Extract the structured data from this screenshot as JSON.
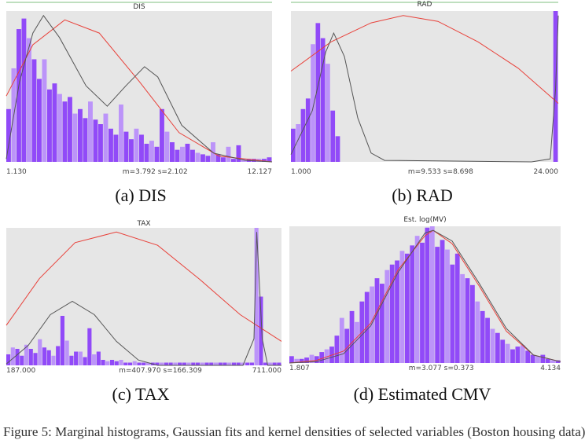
{
  "figure_caption": "Figure 5: Marginal histograms, Gaussian fits and kernel densities of selected variables (Boston housing data)",
  "colors": {
    "bar_dark": "#8a3dfa",
    "bar_light": "#b98dfb",
    "plot_bg": "#e6e6e6",
    "gaussian_fit": "#e8413a",
    "kernel_density": "#555555"
  },
  "chart_data": [
    {
      "type": "bar",
      "caption": "(a) DIS",
      "title": "DIS",
      "xlim": [
        1.13,
        12.127
      ],
      "x_min_label": "1.130",
      "x_max_label": "12.127",
      "stats_label": "m=3.792  s=2.102",
      "mean": 3.792,
      "sd": 2.102,
      "ylim": [
        0,
        1
      ],
      "values": [
        0.35,
        0.62,
        0.88,
        0.95,
        0.82,
        0.68,
        0.55,
        0.68,
        0.48,
        0.52,
        0.45,
        0.4,
        0.43,
        0.32,
        0.35,
        0.29,
        0.4,
        0.28,
        0.25,
        0.32,
        0.22,
        0.18,
        0.38,
        0.2,
        0.15,
        0.22,
        0.18,
        0.12,
        0.14,
        0.1,
        0.35,
        0.2,
        0.13,
        0.08,
        0.1,
        0.12,
        0.08,
        0.06,
        0.05,
        0.04,
        0.13,
        0.05,
        0.03,
        0.1,
        0.02,
        0.11,
        0.02,
        0.02,
        0.02,
        0.02,
        0.02,
        0.03
      ],
      "density_curve": [
        [
          0,
          0.02
        ],
        [
          0.05,
          0.55
        ],
        [
          0.1,
          0.88
        ],
        [
          0.14,
          1.0
        ],
        [
          0.2,
          0.85
        ],
        [
          0.3,
          0.52
        ],
        [
          0.38,
          0.38
        ],
        [
          0.45,
          0.52
        ],
        [
          0.52,
          0.65
        ],
        [
          0.57,
          0.58
        ],
        [
          0.66,
          0.25
        ],
        [
          0.78,
          0.06
        ],
        [
          0.9,
          0.01
        ],
        [
          1,
          0
        ]
      ],
      "gaussian_curve": [
        [
          0,
          0.45
        ],
        [
          0.1,
          0.8
        ],
        [
          0.22,
          0.97
        ],
        [
          0.35,
          0.88
        ],
        [
          0.5,
          0.55
        ],
        [
          0.65,
          0.2
        ],
        [
          0.8,
          0.04
        ],
        [
          1,
          0
        ]
      ]
    },
    {
      "type": "bar",
      "caption": "(b) RAD",
      "title": "RAD",
      "xlim": [
        1.0,
        24.0
      ],
      "x_min_label": "1.000",
      "x_max_label": "24.000",
      "stats_label": "m=9.533  s=8.698",
      "mean": 9.533,
      "sd": 8.698,
      "ylim": [
        0,
        1
      ],
      "values": [
        0.22,
        0.25,
        0.35,
        0.42,
        0.78,
        0.92,
        0.82,
        0.65,
        0.34,
        0.17,
        0,
        0,
        0,
        0,
        0,
        0,
        0,
        0,
        0,
        0,
        0,
        0,
        0,
        0,
        0,
        0,
        0,
        0,
        0,
        0,
        0,
        0,
        0,
        0,
        0,
        0,
        0,
        0,
        0,
        0,
        0,
        0,
        0,
        0,
        0,
        0,
        0,
        0,
        0,
        0,
        0,
        0,
        0,
        1.0
      ],
      "density_curve": [
        [
          0,
          0.05
        ],
        [
          0.08,
          0.35
        ],
        [
          0.13,
          0.75
        ],
        [
          0.16,
          0.88
        ],
        [
          0.2,
          0.72
        ],
        [
          0.25,
          0.3
        ],
        [
          0.3,
          0.06
        ],
        [
          0.35,
          0.01
        ],
        [
          0.9,
          0
        ],
        [
          0.97,
          0.02
        ],
        [
          0.99,
          0.5
        ],
        [
          1,
          1.0
        ]
      ],
      "gaussian_curve": [
        [
          0,
          0.62
        ],
        [
          0.15,
          0.82
        ],
        [
          0.3,
          0.95
        ],
        [
          0.42,
          1.0
        ],
        [
          0.55,
          0.96
        ],
        [
          0.7,
          0.82
        ],
        [
          0.85,
          0.64
        ],
        [
          1,
          0.4
        ]
      ]
    },
    {
      "type": "bar",
      "caption": "(c) TAX",
      "title": "TAX",
      "xlim": [
        187.0,
        711.0
      ],
      "x_min_label": "187.000",
      "x_max_label": "711.000",
      "stats_label": "m=407.970  s=166.309",
      "mean": 407.97,
      "sd": 166.309,
      "ylim": [
        0,
        1
      ],
      "values": [
        0.08,
        0.13,
        0.12,
        0.07,
        0.15,
        0.12,
        0.09,
        0.19,
        0.13,
        0.11,
        0.07,
        0.14,
        0.36,
        0.18,
        0.07,
        0.1,
        0.1,
        0.06,
        0.27,
        0.08,
        0.1,
        0.04,
        0.03,
        0.04,
        0.03,
        0.04,
        0.02,
        0.02,
        0.03,
        0.02,
        0.02,
        0.02,
        0.02,
        0.02,
        0.02,
        0.02,
        0.02,
        0.02,
        0.02,
        0.02,
        0.02,
        0.02,
        0.02,
        0.02,
        0.02,
        0.02,
        0.02,
        0.02,
        0.02,
        0.02,
        0.02,
        0.02,
        0.02,
        0.02,
        0.02,
        1.0,
        0.5,
        0.02,
        0.02,
        0.02,
        0.02
      ],
      "density_curve": [
        [
          0,
          0.01
        ],
        [
          0.08,
          0.15
        ],
        [
          0.16,
          0.38
        ],
        [
          0.24,
          0.48
        ],
        [
          0.32,
          0.38
        ],
        [
          0.4,
          0.18
        ],
        [
          0.48,
          0.04
        ],
        [
          0.55,
          0
        ],
        [
          0.86,
          0
        ],
        [
          0.9,
          0.2
        ],
        [
          0.91,
          1.0
        ],
        [
          0.93,
          0.2
        ],
        [
          0.95,
          0
        ],
        [
          1,
          0
        ]
      ],
      "gaussian_curve": [
        [
          0,
          0.3
        ],
        [
          0.12,
          0.65
        ],
        [
          0.25,
          0.92
        ],
        [
          0.4,
          1.0
        ],
        [
          0.55,
          0.9
        ],
        [
          0.7,
          0.65
        ],
        [
          0.85,
          0.38
        ],
        [
          1,
          0.18
        ]
      ]
    },
    {
      "type": "bar",
      "caption": "(d) Estimated CMV",
      "title": "Est. log(MV)",
      "xlim": [
        1.807,
        4.134
      ],
      "x_min_label": "1.807",
      "x_max_label": "4.134",
      "stats_label": "m=3.077  s=0.373",
      "mean": 3.077,
      "sd": 0.373,
      "ylim": [
        0,
        1
      ],
      "values": [
        0.05,
        0.03,
        0.03,
        0.04,
        0.06,
        0.05,
        0.08,
        0.1,
        0.12,
        0.2,
        0.33,
        0.25,
        0.38,
        0.3,
        0.45,
        0.52,
        0.56,
        0.62,
        0.58,
        0.68,
        0.72,
        0.75,
        0.82,
        0.8,
        0.86,
        0.93,
        0.88,
        0.99,
        1.0,
        0.85,
        0.9,
        0.83,
        0.72,
        0.8,
        0.65,
        0.62,
        0.57,
        0.45,
        0.38,
        0.33,
        0.25,
        0.22,
        0.17,
        0.14,
        0.1,
        0.12,
        0.13,
        0.09,
        0.06,
        0.05,
        0.06,
        0.03,
        0.02,
        0.02
      ],
      "density_curve": [
        [
          0,
          0
        ],
        [
          0.1,
          0.01
        ],
        [
          0.2,
          0.07
        ],
        [
          0.3,
          0.28
        ],
        [
          0.4,
          0.68
        ],
        [
          0.5,
          0.98
        ],
        [
          0.53,
          1.0
        ],
        [
          0.6,
          0.92
        ],
        [
          0.7,
          0.6
        ],
        [
          0.8,
          0.26
        ],
        [
          0.9,
          0.06
        ],
        [
          1,
          0.01
        ]
      ],
      "gaussian_curve": [
        [
          0,
          0
        ],
        [
          0.1,
          0.02
        ],
        [
          0.2,
          0.09
        ],
        [
          0.3,
          0.3
        ],
        [
          0.4,
          0.7
        ],
        [
          0.5,
          0.96
        ],
        [
          0.53,
          1.0
        ],
        [
          0.6,
          0.9
        ],
        [
          0.7,
          0.58
        ],
        [
          0.8,
          0.24
        ],
        [
          0.9,
          0.06
        ],
        [
          1,
          0.01
        ]
      ]
    }
  ]
}
